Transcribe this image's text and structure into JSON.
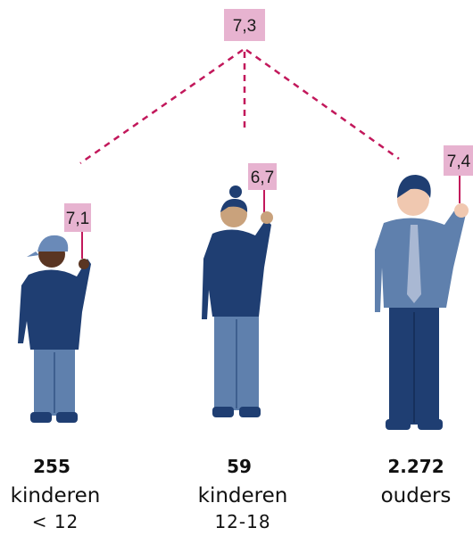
{
  "overall": {
    "score": "7,3"
  },
  "groups": [
    {
      "score": "7,1",
      "count": "255",
      "label": "kinderen",
      "sublabel": "< 12"
    },
    {
      "score": "6,7",
      "count": "59",
      "label": "kinderen",
      "sublabel": "12-18"
    },
    {
      "score": "7,4",
      "count": "2.272",
      "label": "ouders"
    }
  ]
}
